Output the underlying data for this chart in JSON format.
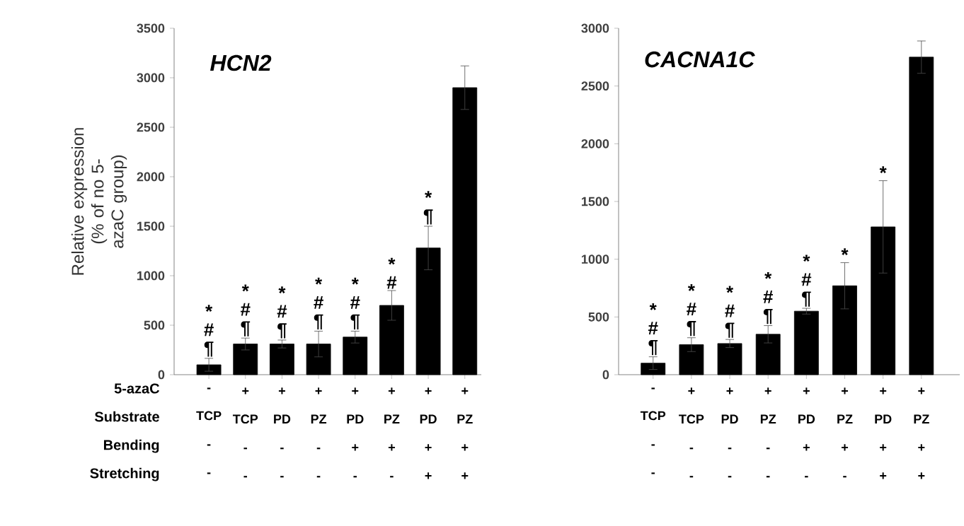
{
  "chart_data": [
    {
      "type": "bar",
      "title": "HCN2",
      "ylabel": "Relative expression (% of no 5-azaC group)",
      "color": "#000000",
      "categories": [
        "- TCP - -",
        "+ TCP - -",
        "+ PD - -",
        "+ PZ - -",
        "+ PD + -",
        "+ PZ + -",
        "+ PD + +",
        "+ PZ + +"
      ],
      "values": [
        100,
        310,
        310,
        310,
        380,
        700,
        1280,
        2900
      ],
      "errors": [
        65,
        60,
        40,
        130,
        60,
        150,
        220,
        220
      ],
      "value_labels": [
        "* # ¶",
        "* # ¶",
        "* # ¶",
        "* # ¶",
        "* # ¶",
        "* #",
        "* ¶",
        null
      ],
      "ylim": [
        0,
        3500
      ],
      "yticks": [
        0,
        500,
        1000,
        1500,
        2000,
        2500,
        3000,
        3500
      ],
      "annotations": [
        "5-azaC",
        "Substrate",
        "Bending",
        "Stretching"
      ]
    },
    {
      "type": "bar",
      "title": "CACNA1C",
      "color": "#000000",
      "categories": [
        "- TCP - -",
        "+ TCP - -",
        "+ PD - -",
        "+ PZ - -",
        "+ PD + -",
        "+ PZ + -",
        "+ PD + +",
        "+ PZ + +"
      ],
      "values": [
        100,
        260,
        270,
        350,
        550,
        770,
        1280,
        2750
      ],
      "errors": [
        55,
        60,
        35,
        75,
        25,
        200,
        400,
        140
      ],
      "value_labels": [
        "* # ¶",
        "* # ¶",
        "* # ¶",
        "* # ¶",
        "* # ¶",
        "*",
        "*",
        null
      ],
      "ylim": [
        0,
        3000
      ],
      "yticks": [
        0,
        500,
        1000,
        1500,
        2000,
        2500,
        3000
      ]
    }
  ]
}
